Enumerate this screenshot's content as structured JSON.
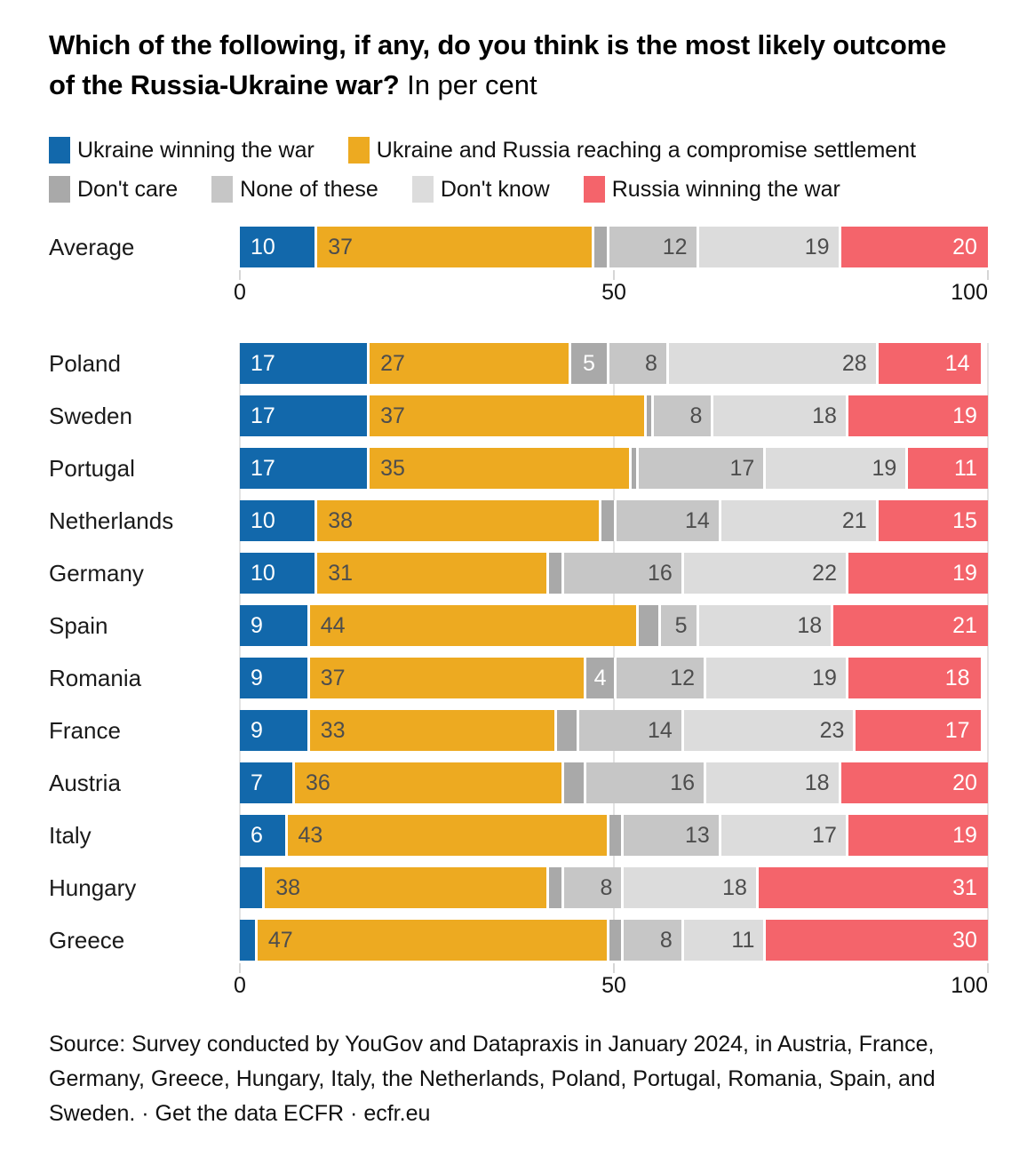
{
  "title": {
    "question": "Which of the following, if any, do you think is the most likely outcome of the Russia-Ukraine war?",
    "suffix": " In per cent"
  },
  "legend": {
    "rows": [
      [
        {
          "label": "Ukraine winning the war",
          "color": "#1268ab"
        },
        {
          "label": "Ukraine and Russia reaching a compromise settlement",
          "color": "#edaa21"
        }
      ],
      [
        {
          "label": "Don't care",
          "color": "#a9a9a9"
        },
        {
          "label": "None of these",
          "color": "#c6c6c6"
        },
        {
          "label": "Don't know",
          "color": "#dcdcdc"
        },
        {
          "label": "Russia winning the war",
          "color": "#f4646b"
        }
      ]
    ]
  },
  "chart_data": {
    "type": "bar",
    "orientation": "horizontal",
    "stacked": true,
    "unit": "per cent",
    "xlim": [
      0,
      100
    ],
    "grid": true,
    "x_ticks": [
      {
        "value": 0,
        "label": "0"
      },
      {
        "value": 50,
        "label": "50"
      },
      {
        "value": 100,
        "label": "100"
      }
    ],
    "series_names": [
      "Ukraine winning the war",
      "Ukraine and Russia reaching a compromise settlement",
      "Don't care",
      "None of these",
      "Don't know",
      "Russia winning the war"
    ],
    "colors": [
      "#1268ab",
      "#edaa21",
      "#a9a9a9",
      "#c6c6c6",
      "#dcdcdc",
      "#f4646b"
    ],
    "label_min_to_show": 4,
    "average": {
      "label": "Average",
      "values": [
        10,
        37,
        2,
        12,
        19,
        20
      ]
    },
    "rows": [
      {
        "label": "Poland",
        "values": [
          17,
          27,
          5,
          8,
          28,
          14
        ]
      },
      {
        "label": "Sweden",
        "values": [
          17,
          37,
          1,
          8,
          18,
          19
        ]
      },
      {
        "label": "Portugal",
        "values": [
          17,
          35,
          1,
          17,
          19,
          11
        ]
      },
      {
        "label": "Netherlands",
        "values": [
          10,
          38,
          2,
          14,
          21,
          15
        ]
      },
      {
        "label": "Germany",
        "values": [
          10,
          31,
          2,
          16,
          22,
          19
        ]
      },
      {
        "label": "Spain",
        "values": [
          9,
          44,
          3,
          5,
          18,
          21
        ]
      },
      {
        "label": "Romania",
        "values": [
          9,
          37,
          4,
          12,
          19,
          18
        ]
      },
      {
        "label": "France",
        "values": [
          9,
          33,
          3,
          14,
          23,
          17
        ]
      },
      {
        "label": "Austria",
        "values": [
          7,
          36,
          3,
          16,
          18,
          20
        ]
      },
      {
        "label": "Italy",
        "values": [
          6,
          43,
          2,
          13,
          17,
          19
        ]
      },
      {
        "label": "Hungary",
        "values": [
          3,
          38,
          2,
          8,
          18,
          31
        ]
      },
      {
        "label": "Greece",
        "values": [
          2,
          47,
          2,
          8,
          11,
          30
        ]
      }
    ]
  },
  "source": {
    "text": "Source: Survey conducted by YouGov and Datapraxis in January 2024, in Austria, France, Germany, Greece, Hungary, Italy, the Netherlands, Poland, Portugal, Romania, Spain, and Sweden. · Get the data ECFR · ecfr.eu"
  }
}
